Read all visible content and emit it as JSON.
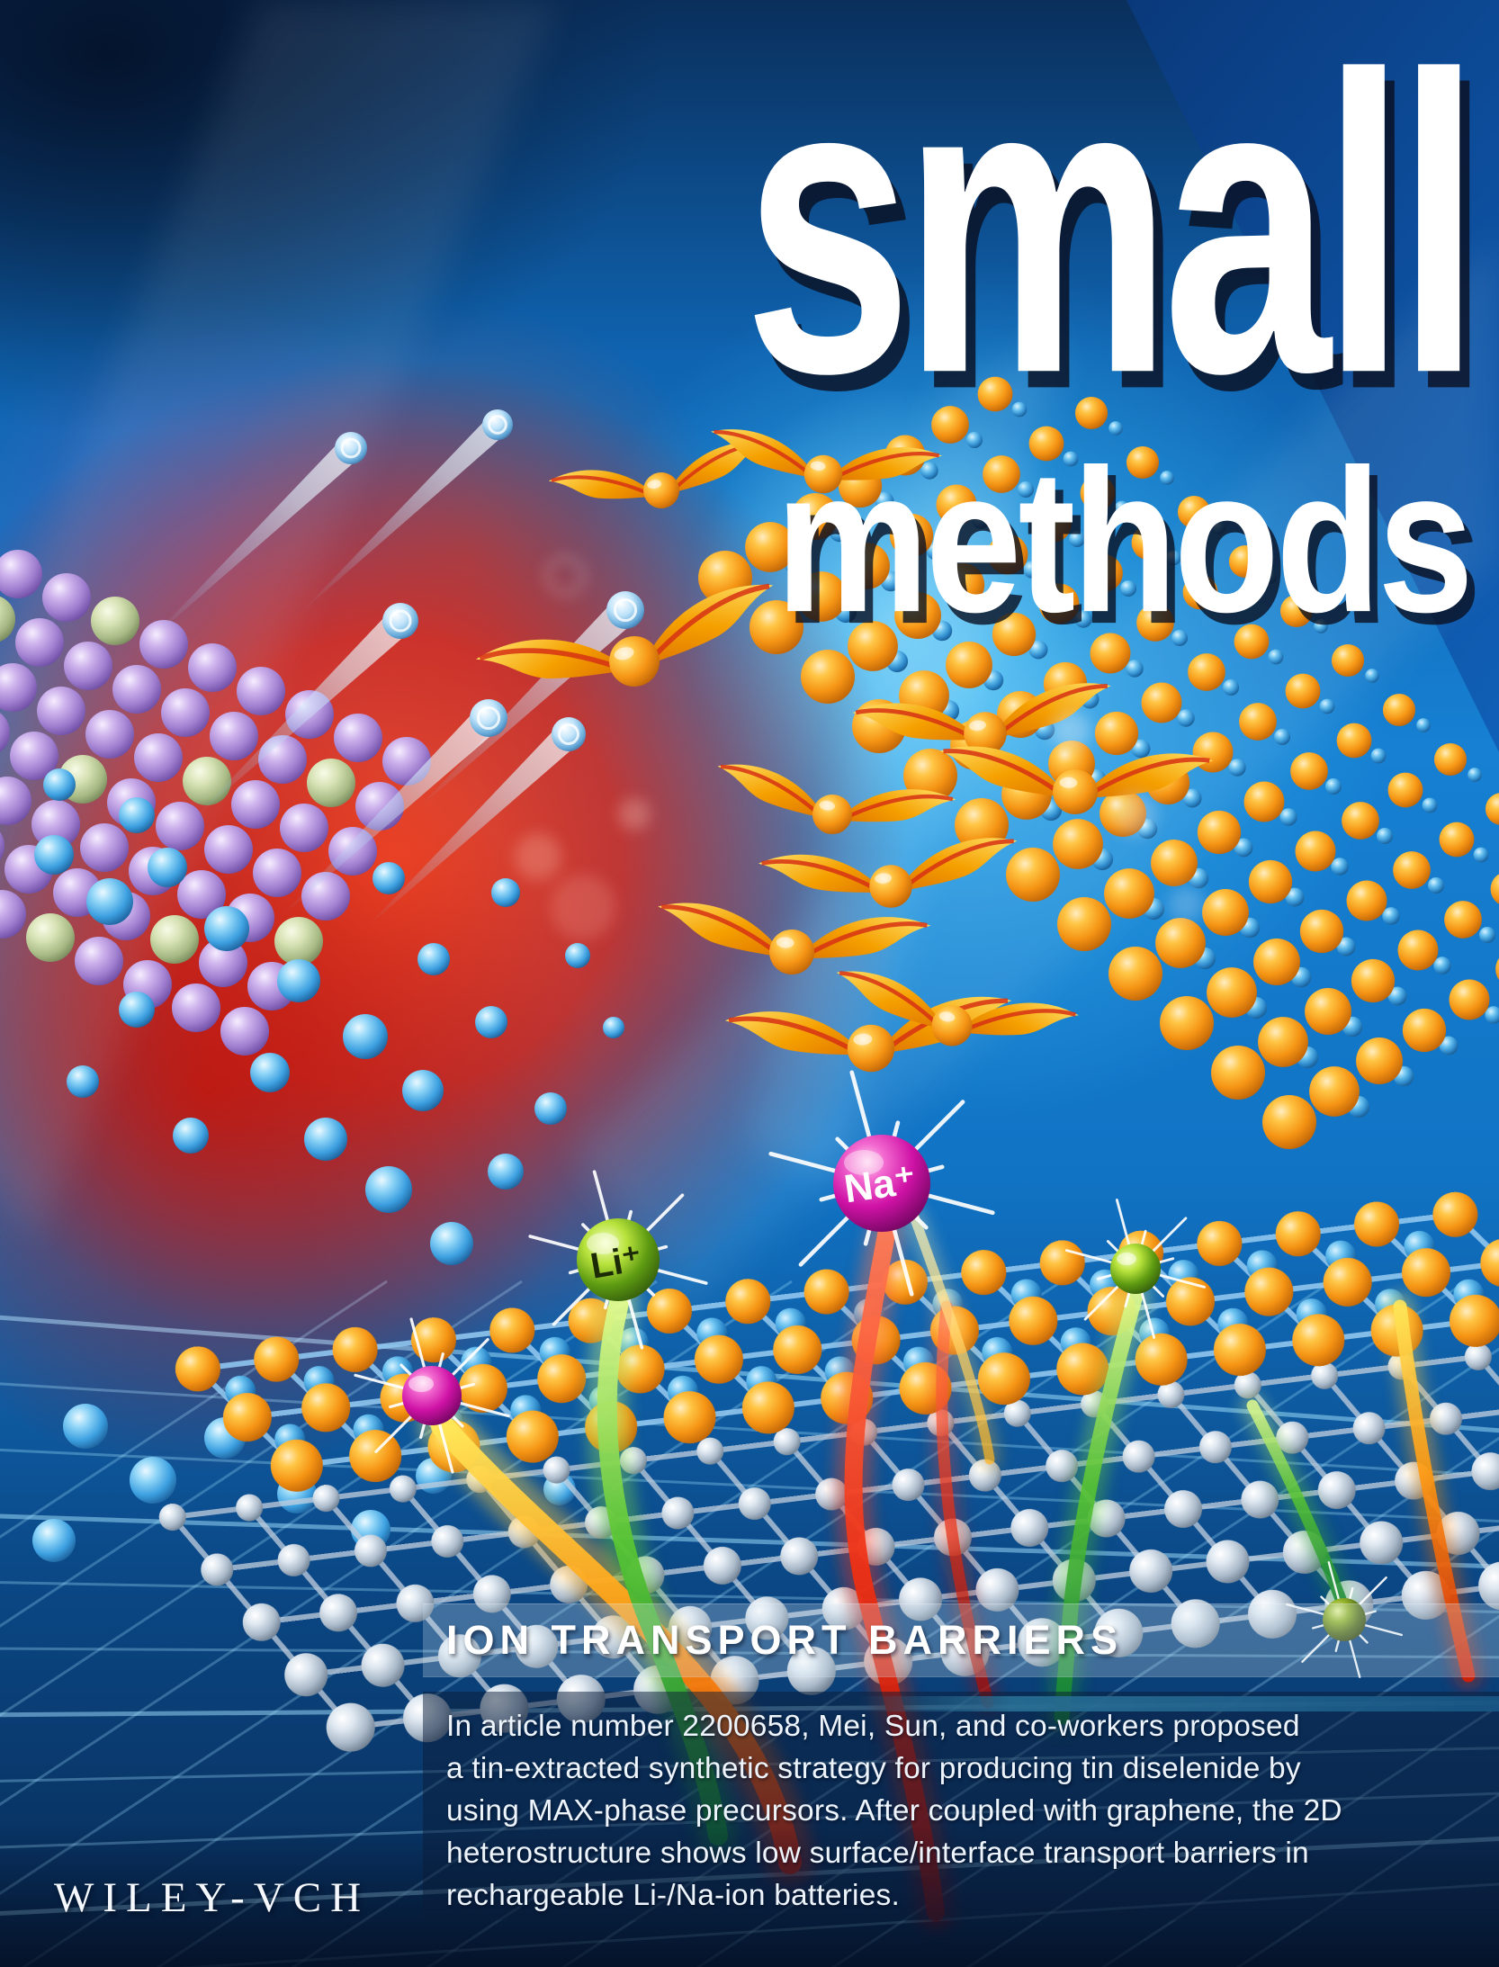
{
  "journal": {
    "title_line1": "small",
    "title_line2": "methods",
    "publisher": "WILEY-VCH"
  },
  "feature": {
    "heading": "ION TRANSPORT BARRIERS",
    "lines": [
      "In article number 2200658, Mei, Sun, and co-workers proposed",
      "a tin-extracted synthetic strategy for producing tin diselenide by",
      "using MAX-phase precursors. After coupled with graphene, the 2D",
      "heterostructure shows low surface/interface transport barriers in",
      "rechargeable Li-/Na-ion batteries."
    ]
  },
  "artwork": {
    "lithium_label": "Li⁺",
    "sodium_label": "Na⁺",
    "colors": {
      "sky_blue": "#1b84d6",
      "deep_navy": "#071d3a",
      "energy_red": "#e23418",
      "selenium_orange": "#f59e1d",
      "tin_blue": "#3da0e0",
      "graphene_silver": "#c3cfde",
      "lithium_green": "#5f9c12",
      "sodium_magenta": "#cf12a6"
    }
  }
}
